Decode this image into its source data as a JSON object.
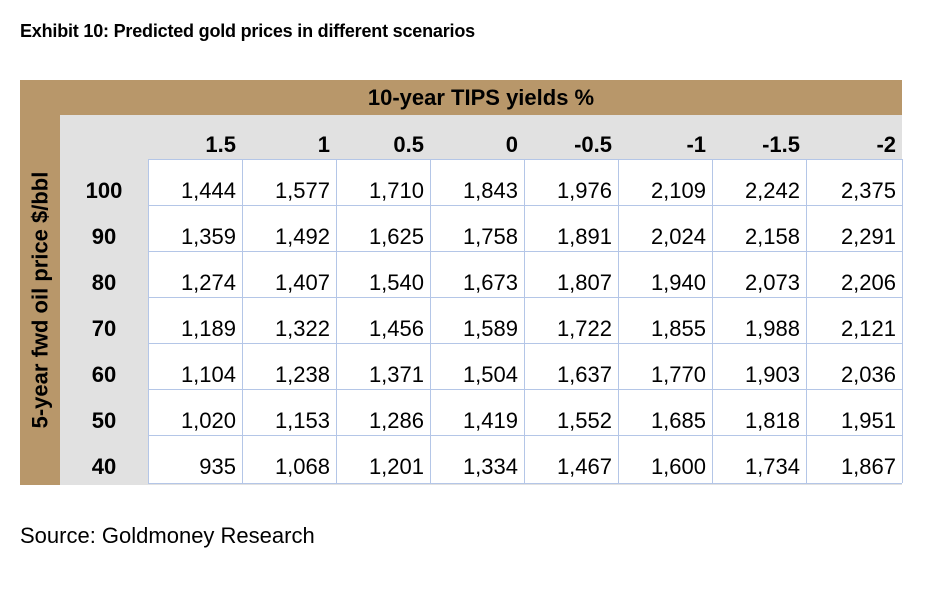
{
  "exhibit_title": "Exhibit 10: Predicted gold prices in different scenarios",
  "column_header_title": "10-year TIPS yields %",
  "row_header_title": "5-year fwd oil price $/bbl",
  "columns": [
    "1.5",
    "1",
    "0.5",
    "0",
    "-0.5",
    "-1",
    "-1.5",
    "-2"
  ],
  "rows": [
    {
      "oil": "100",
      "values": [
        "1,444",
        "1,577",
        "1,710",
        "1,843",
        "1,976",
        "2,109",
        "2,242",
        "2,375"
      ]
    },
    {
      "oil": "90",
      "values": [
        "1,359",
        "1,492",
        "1,625",
        "1,758",
        "1,891",
        "2,024",
        "2,158",
        "2,291"
      ]
    },
    {
      "oil": "80",
      "values": [
        "1,274",
        "1,407",
        "1,540",
        "1,673",
        "1,807",
        "1,940",
        "2,073",
        "2,206"
      ]
    },
    {
      "oil": "70",
      "values": [
        "1,189",
        "1,322",
        "1,456",
        "1,589",
        "1,722",
        "1,855",
        "1,988",
        "2,121"
      ]
    },
    {
      "oil": "60",
      "values": [
        "1,104",
        "1,238",
        "1,371",
        "1,504",
        "1,637",
        "1,770",
        "1,903",
        "2,036"
      ]
    },
    {
      "oil": "50",
      "values": [
        "1,020",
        "1,153",
        "1,286",
        "1,419",
        "1,552",
        "1,685",
        "1,818",
        "1,951"
      ]
    },
    {
      "oil": "40",
      "values": [
        "935",
        "1,068",
        "1,201",
        "1,334",
        "1,467",
        "1,600",
        "1,734",
        "1,867"
      ]
    }
  ],
  "source": "Source: Goldmoney Research",
  "colors": {
    "frame": "#b8976a",
    "panel": "#e1e1e1",
    "grid_lines": "#b4c6e7"
  }
}
